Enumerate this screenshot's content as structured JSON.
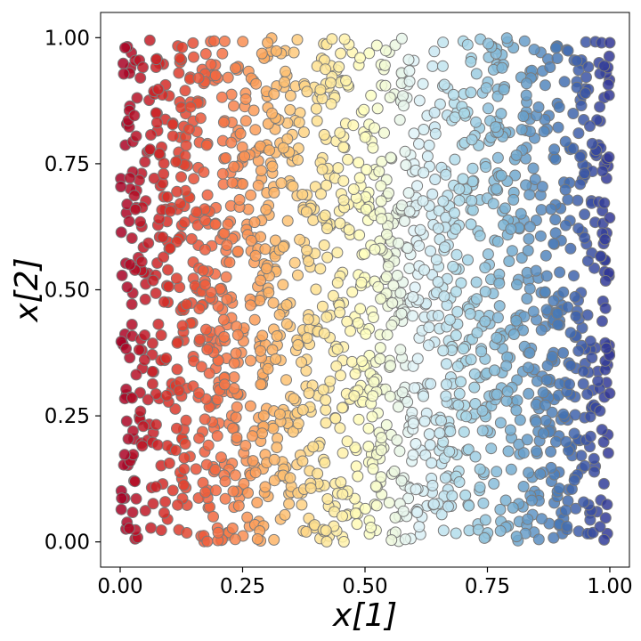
{
  "chart_data": {
    "type": "scatter",
    "title": "",
    "xlabel": "x[1]",
    "ylabel": "x[2]",
    "xlim": [
      -0.04,
      1.04
    ],
    "ylim": [
      -0.05,
      1.05
    ],
    "xticks": [
      0.0,
      0.25,
      0.5,
      0.75,
      1.0
    ],
    "xtick_labels": [
      "0.00",
      "0.25",
      "0.50",
      "0.75",
      "1.00"
    ],
    "yticks": [
      0.0,
      0.25,
      0.5,
      0.75,
      1.0
    ],
    "ytick_labels": [
      "0.00",
      "0.25",
      "0.50",
      "0.75",
      "1.00"
    ],
    "grid": false,
    "legend": "none",
    "n_points": 2000,
    "x_distribution": "uniform [0, 1]",
    "y_distribution": "uniform [0, 1]",
    "color_mapping": "point color determined by x[1] value (diverging colormap)",
    "colormap": [
      "#a50026",
      "#d73027",
      "#f46d43",
      "#fdae61",
      "#fee090",
      "#ffffbf",
      "#e0f3f8",
      "#abd9e9",
      "#74add1",
      "#4575b4",
      "#313695"
    ],
    "marker_edge_color": "#7a7a7a",
    "sample_points": [
      [
        0.01,
        0.98
      ],
      [
        0.02,
        0.55
      ],
      [
        0.03,
        0.12
      ],
      [
        0.05,
        0.41
      ],
      [
        0.08,
        0.77
      ],
      [
        0.12,
        0.3
      ],
      [
        0.16,
        0.92
      ],
      [
        0.19,
        0.05
      ],
      [
        0.22,
        0.63
      ],
      [
        0.27,
        0.21
      ],
      [
        0.31,
        0.85
      ],
      [
        0.34,
        0.47
      ],
      [
        0.38,
        0.02
      ],
      [
        0.41,
        0.69
      ],
      [
        0.45,
        0.33
      ],
      [
        0.49,
        0.96
      ],
      [
        0.52,
        0.58
      ],
      [
        0.56,
        0.14
      ],
      [
        0.6,
        0.81
      ],
      [
        0.63,
        0.39
      ],
      [
        0.67,
        0.07
      ],
      [
        0.7,
        0.72
      ],
      [
        0.74,
        0.26
      ],
      [
        0.78,
        0.94
      ],
      [
        0.81,
        0.51
      ],
      [
        0.85,
        0.18
      ],
      [
        0.88,
        0.66
      ],
      [
        0.92,
        0.35
      ],
      [
        0.95,
        0.89
      ],
      [
        0.98,
        0.03
      ],
      [
        0.99,
        0.6
      ],
      [
        1.0,
        0.99
      ]
    ]
  }
}
